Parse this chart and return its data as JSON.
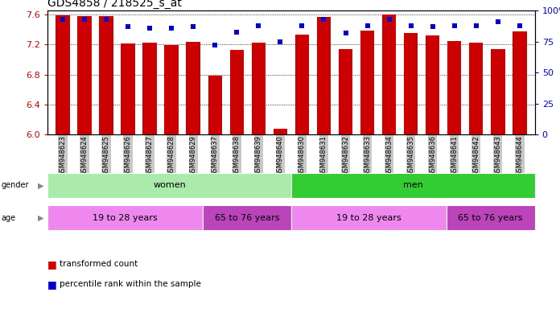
{
  "title": "GDS4858 / 218525_s_at",
  "samples": [
    "GSM948623",
    "GSM948624",
    "GSM948625",
    "GSM948626",
    "GSM948627",
    "GSM948628",
    "GSM948629",
    "GSM948637",
    "GSM948638",
    "GSM948639",
    "GSM948640",
    "GSM948630",
    "GSM948631",
    "GSM948632",
    "GSM948633",
    "GSM948634",
    "GSM948635",
    "GSM948636",
    "GSM948641",
    "GSM948642",
    "GSM948643",
    "GSM948644"
  ],
  "red_values": [
    7.59,
    7.58,
    7.58,
    7.21,
    7.22,
    7.19,
    7.24,
    6.78,
    7.13,
    7.22,
    6.08,
    7.33,
    7.57,
    7.14,
    7.39,
    7.6,
    7.35,
    7.32,
    7.25,
    7.22,
    7.14,
    7.38
  ],
  "blue_values": [
    93,
    93,
    93,
    87,
    86,
    86,
    87,
    72,
    83,
    88,
    75,
    88,
    93,
    82,
    88,
    93,
    88,
    87,
    88,
    88,
    91,
    88
  ],
  "ylim_left": [
    6.0,
    7.65
  ],
  "ylim_right": [
    0,
    100
  ],
  "yticks_left": [
    6.0,
    6.4,
    6.8,
    7.2,
    7.6
  ],
  "yticks_right": [
    0,
    25,
    50,
    75,
    100
  ],
  "bar_color": "#cc0000",
  "dot_color": "#0000cc",
  "bar_bottom": 6.0,
  "gender_groups": [
    {
      "label": "women",
      "start": 0,
      "end": 11,
      "color": "#aaeaaa"
    },
    {
      "label": "men",
      "start": 11,
      "end": 22,
      "color": "#33cc33"
    }
  ],
  "age_groups": [
    {
      "label": "19 to 28 years",
      "start": 0,
      "end": 7,
      "color": "#ee88ee"
    },
    {
      "label": "65 to 76 years",
      "start": 7,
      "end": 11,
      "color": "#bb44bb"
    },
    {
      "label": "19 to 28 years",
      "start": 11,
      "end": 18,
      "color": "#ee88ee"
    },
    {
      "label": "65 to 76 years",
      "start": 18,
      "end": 22,
      "color": "#bb44bb"
    }
  ],
  "legend_red": "transformed count",
  "legend_blue": "percentile rank within the sample",
  "background_color": "#ffffff",
  "xtick_bg": "#c8c8c8",
  "title_fontsize": 10,
  "axis_tick_fontsize": 8,
  "xtick_fontsize": 6,
  "axis_color_left": "#cc0000",
  "axis_color_right": "#0000cc"
}
